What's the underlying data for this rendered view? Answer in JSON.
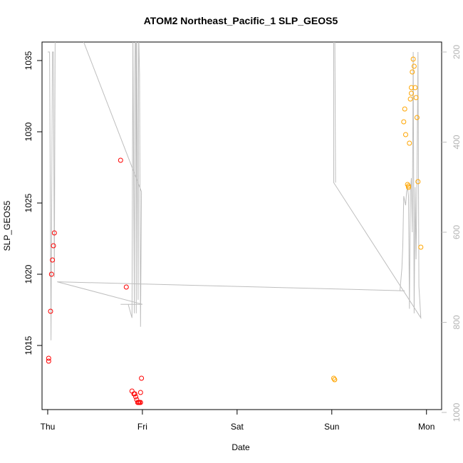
{
  "chart_data": {
    "type": "scatter",
    "title": "ATOM2 Northeast_Pacific_1 SLP_GEOS5",
    "xlabel": "Date",
    "ylabel": "SLP_GEOS5",
    "x_ticks": [
      "Thu",
      "Fri",
      "Sat",
      "Sun",
      "Mon"
    ],
    "x_tick_values": [
      0,
      1,
      2,
      3,
      4
    ],
    "xlim": [
      -0.06,
      4.16
    ],
    "ylim": [
      1010.5,
      1036.3
    ],
    "y_ticks": [
      1015,
      1020,
      1025,
      1030,
      1035
    ],
    "y2_ticks": [
      200,
      400,
      600,
      800,
      1000
    ],
    "y2_range": [
      1035.6,
      1010.3,
      200,
      1000
    ],
    "y2_color": "#bebebe",
    "series": [
      {
        "color": "#ff0000",
        "points": [
          [
            0.01,
            1013.9
          ],
          [
            0.01,
            1014.1
          ],
          [
            0.03,
            1017.4
          ],
          [
            0.04,
            1020.0
          ],
          [
            0.05,
            1021.0
          ],
          [
            0.06,
            1022.0
          ],
          [
            0.07,
            1022.9
          ],
          [
            0.77,
            1028.0
          ],
          [
            0.83,
            1019.1
          ],
          [
            0.89,
            1011.8
          ],
          [
            0.91,
            1011.6
          ],
          [
            0.92,
            1011.6
          ],
          [
            0.93,
            1011.4
          ],
          [
            0.94,
            1011.2
          ],
          [
            0.95,
            1011.0
          ],
          [
            0.96,
            1011.0
          ],
          [
            0.97,
            1011.0
          ],
          [
            0.98,
            1011.0
          ],
          [
            0.98,
            1011.7
          ],
          [
            0.99,
            1012.7
          ]
        ]
      },
      {
        "color": "#ffa500",
        "points": [
          [
            3.02,
            1012.7
          ],
          [
            3.03,
            1012.6
          ],
          [
            3.03,
            1012.6
          ],
          [
            3.76,
            1030.7
          ],
          [
            3.77,
            1031.6
          ],
          [
            3.78,
            1029.8
          ],
          [
            3.8,
            1026.3
          ],
          [
            3.81,
            1026.1
          ],
          [
            3.81,
            1026.2
          ],
          [
            3.82,
            1029.2
          ],
          [
            3.83,
            1032.3
          ],
          [
            3.84,
            1032.7
          ],
          [
            3.84,
            1033.1
          ],
          [
            3.85,
            1034.2
          ],
          [
            3.86,
            1035.1
          ],
          [
            3.87,
            1034.6
          ],
          [
            3.88,
            1033.1
          ],
          [
            3.89,
            1032.4
          ],
          [
            3.9,
            1031.0
          ],
          [
            3.91,
            1026.5
          ],
          [
            3.94,
            1021.9
          ]
        ]
      }
    ],
    "line_series": {
      "color": "#bebebe",
      "points": [
        [
          0.0,
          200
        ],
        [
          0.02,
          200
        ],
        [
          0.035,
          840
        ],
        [
          0.05,
          200
        ],
        [
          0.06,
          200
        ],
        [
          0.07,
          700
        ],
        [
          0.08,
          80
        ],
        [
          0.2,
          80
        ],
        [
          0.99,
          510
        ],
        [
          0.98,
          810
        ],
        [
          0.97,
          250
        ],
        [
          0.96,
          150
        ],
        [
          0.955,
          750
        ],
        [
          0.94,
          150
        ],
        [
          0.935,
          780
        ],
        [
          0.93,
          80
        ],
        [
          0.92,
          250
        ],
        [
          0.915,
          780
        ],
        [
          0.9,
          150
        ],
        [
          0.89,
          790
        ],
        [
          0.85,
          760
        ],
        [
          0.77,
          760
        ],
        [
          0.99,
          760
        ],
        [
          1.0,
          760
        ],
        [
          0.1,
          710
        ],
        [
          3.77,
          730
        ],
        [
          3.72,
          730
        ],
        [
          3.74,
          680
        ],
        [
          3.75,
          630
        ],
        [
          3.76,
          520
        ],
        [
          3.78,
          540
        ],
        [
          3.79,
          510
        ],
        [
          3.8,
          500
        ],
        [
          3.81,
          520
        ],
        [
          3.82,
          770
        ],
        [
          3.83,
          510
        ],
        [
          3.84,
          480
        ],
        [
          3.85,
          600
        ],
        [
          3.86,
          200
        ],
        [
          3.87,
          780
        ],
        [
          3.88,
          500
        ],
        [
          3.89,
          660
        ],
        [
          3.9,
          480
        ],
        [
          3.91,
          200
        ],
        [
          3.92,
          720
        ],
        [
          3.94,
          790
        ],
        [
          3.02,
          490
        ],
        [
          3.02,
          80
        ],
        [
          3.03,
          80
        ],
        [
          3.04,
          490
        ]
      ]
    },
    "grid": false,
    "legend": "none"
  }
}
